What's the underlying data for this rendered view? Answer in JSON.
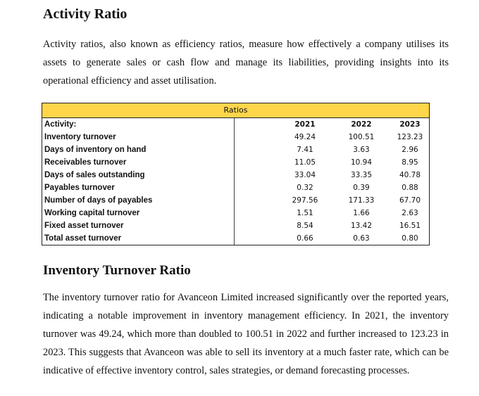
{
  "section1": {
    "heading": "Activity Ratio",
    "paragraph": "Activity ratios, also known as efficiency ratios, measure how effectively a company utilises its assets to generate sales or cash flow and manage its liabilities, providing insights into its operational efficiency and asset utilisation."
  },
  "table": {
    "title": "Ratios",
    "header_label": "Activity:",
    "years": [
      "2021",
      "2022",
      "2023"
    ],
    "rows": [
      {
        "label": "Inventory turnover",
        "values": [
          "49.24",
          "100.51",
          "123.23"
        ]
      },
      {
        "label": "Days of inventory on hand",
        "values": [
          "7.41",
          "3.63",
          "2.96"
        ]
      },
      {
        "label": "Receivables turnover",
        "values": [
          "11.05",
          "10.94",
          "8.95"
        ]
      },
      {
        "label": "Days of sales outstanding",
        "values": [
          "33.04",
          "33.35",
          "40.78"
        ]
      },
      {
        "label": "Payables turnover",
        "values": [
          "0.32",
          "0.39",
          "0.88"
        ]
      },
      {
        "label": "Number of days of payables",
        "values": [
          "297.56",
          "171.33",
          "67.70"
        ]
      },
      {
        "label": "Working capital turnover",
        "values": [
          "1.51",
          "1.66",
          "2.63"
        ]
      },
      {
        "label": "Fixed asset turnover",
        "values": [
          "8.54",
          "13.42",
          "16.51"
        ]
      },
      {
        "label": "Total asset turnover",
        "values": [
          "0.66",
          "0.63",
          "0.80"
        ]
      }
    ],
    "header_color": "#ffd54a"
  },
  "section2": {
    "heading": "Inventory Turnover Ratio",
    "paragraph": "The inventory turnover ratio for Avanceon Limited increased significantly over the reported years, indicating a notable improvement in inventory management efficiency. In 2021, the inventory turnover was 49.24, which more than doubled to 100.51 in 2022 and further increased to 123.23 in 2023. This suggests that Avanceon was able to sell its inventory at a much faster rate, which can be indicative of effective inventory control, sales strategies, or demand forecasting processes."
  }
}
